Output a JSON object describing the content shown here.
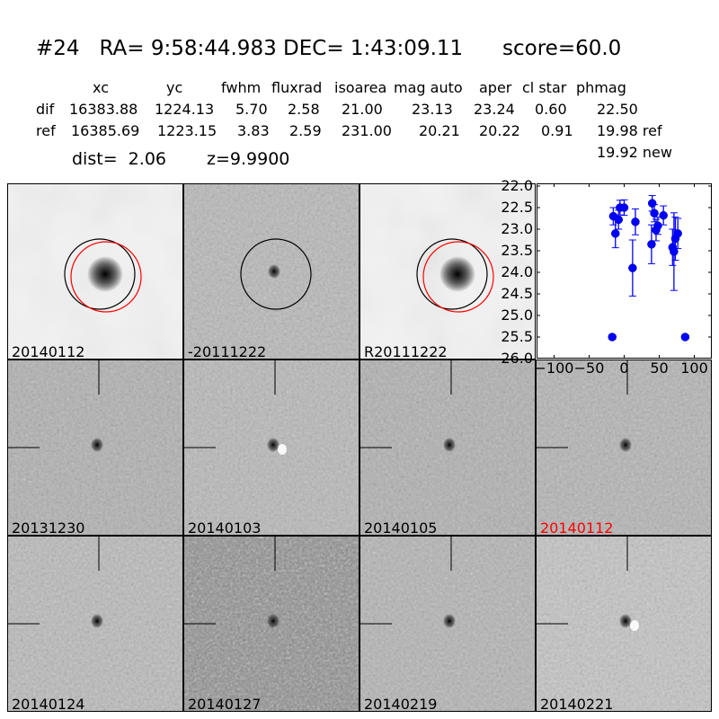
{
  "header": {
    "title": "#24   RA= 9:58:44.983 DEC= 1:43:09.11      score=60.0",
    "columns": [
      "xc",
      "yc",
      "fwhm",
      "fluxrad",
      "isoarea",
      "mag auto",
      "aper",
      "cl star",
      "phmag"
    ],
    "dif": {
      "label": "dif",
      "values": [
        "16383.88",
        "1224.13",
        "5.70",
        "2.58",
        "21.00",
        "23.13",
        "23.24",
        "0.60",
        "22.50"
      ]
    },
    "ref": {
      "label": "ref",
      "values": [
        "16385.69",
        "1223.15",
        "3.83",
        "2.59",
        "231.00",
        "20.21",
        "20.22",
        "0.91",
        "19.98 ref"
      ]
    },
    "new_phmag": "19.92 new",
    "dist": "dist=  2.06",
    "z": "z=9.9900"
  },
  "panels": [
    {
      "label": "20140112",
      "type": "new",
      "bg": "#f2f2f2",
      "circles": [
        "black",
        "red"
      ]
    },
    {
      "label": "-20111222",
      "type": "diff",
      "bg": "#b8b8b8",
      "circles": [
        "black"
      ]
    },
    {
      "label": "R20111222",
      "type": "ref",
      "bg": "#f2f2f2",
      "circles": [
        "black",
        "red"
      ]
    },
    {
      "label": "20131230",
      "type": "stamp",
      "bg": "#b0b0b0"
    },
    {
      "label": "20140103",
      "type": "stamp",
      "bg": "#b8b8b8"
    },
    {
      "label": "20140105",
      "type": "stamp",
      "bg": "#b0b0b0"
    },
    {
      "label": "20140112",
      "type": "stamp",
      "bg": "#b4b4b4",
      "label_color": "#ff0000"
    },
    {
      "label": "20140124",
      "type": "stamp",
      "bg": "#bababa"
    },
    {
      "label": "20140127",
      "type": "stamp",
      "bg": "#8c8c8c"
    },
    {
      "label": "20140219",
      "type": "stamp",
      "bg": "#b4b4b4"
    },
    {
      "label": "20140221",
      "type": "stamp",
      "bg": "#c4c4c4"
    }
  ],
  "chart_data": {
    "type": "scatter",
    "xlim": [
      -125,
      125
    ],
    "ylim": [
      26.0,
      22.0
    ],
    "y_inverted": true,
    "xticks": [
      "−100",
      "−50",
      "0",
      "50",
      "100"
    ],
    "xtick_values": [
      -100,
      -50,
      0,
      50,
      100
    ],
    "yticks": [
      "22.0",
      "22.5",
      "23.0",
      "23.5",
      "24.0",
      "24.5",
      "25.0",
      "25.5",
      "26.0"
    ],
    "ytick_values": [
      22.0,
      22.5,
      23.0,
      23.5,
      24.0,
      24.5,
      25.0,
      25.5,
      26.0
    ],
    "color": "#0000ff",
    "points": [
      {
        "x": -15.5,
        "y": 22.7,
        "err": 0.2
      },
      {
        "x": -12.5,
        "y": 23.1,
        "err": 0.33
      },
      {
        "x": -8,
        "y": 22.78,
        "err": 0.22
      },
      {
        "x": -6,
        "y": 22.5,
        "err": 0.17
      },
      {
        "x": 0,
        "y": 22.5,
        "err": 0.18
      },
      {
        "x": 12,
        "y": 23.9,
        "err": 0.65
      },
      {
        "x": 16,
        "y": 22.83,
        "err": 0.3
      },
      {
        "x": 39,
        "y": 23.35,
        "err": 0.45
      },
      {
        "x": 40,
        "y": 22.4,
        "err": 0.18
      },
      {
        "x": 43,
        "y": 22.63,
        "err": 0.2
      },
      {
        "x": 45.5,
        "y": 23.02,
        "err": 0.25
      },
      {
        "x": 48,
        "y": 22.92,
        "err": 0.2
      },
      {
        "x": 56,
        "y": 22.68,
        "err": 0.22
      },
      {
        "x": 69,
        "y": 23.42,
        "err": 0.42
      },
      {
        "x": 71,
        "y": 23.52,
        "err": 0.9
      },
      {
        "x": 73,
        "y": 23.22,
        "err": 0.5
      },
      {
        "x": 76.5,
        "y": 23.1,
        "err": 0.35
      },
      {
        "x": -17,
        "y": 25.5,
        "err": 0.05
      },
      {
        "x": 87,
        "y": 25.5,
        "err": 0.05
      }
    ]
  }
}
